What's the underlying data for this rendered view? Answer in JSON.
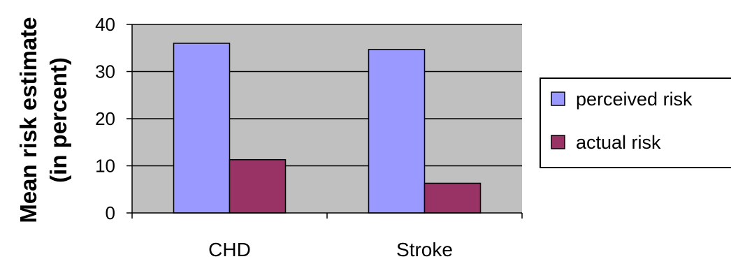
{
  "chart_data": {
    "type": "bar",
    "categories": [
      "CHD",
      "Stroke"
    ],
    "series": [
      {
        "name": "perceived risk",
        "values": [
          36,
          34.7
        ],
        "color": "#9999ff"
      },
      {
        "name": "actual risk",
        "values": [
          11.3,
          6.3
        ],
        "color": "#993366"
      }
    ],
    "ylabel_lines": [
      "Mean risk estimate",
      "(in percent)"
    ],
    "ylim": [
      0,
      40
    ],
    "yticks": [
      "0",
      "10",
      "20",
      "30",
      "40"
    ],
    "grid": true,
    "legend_position": "right",
    "plot_background": "#c0c0c0"
  }
}
